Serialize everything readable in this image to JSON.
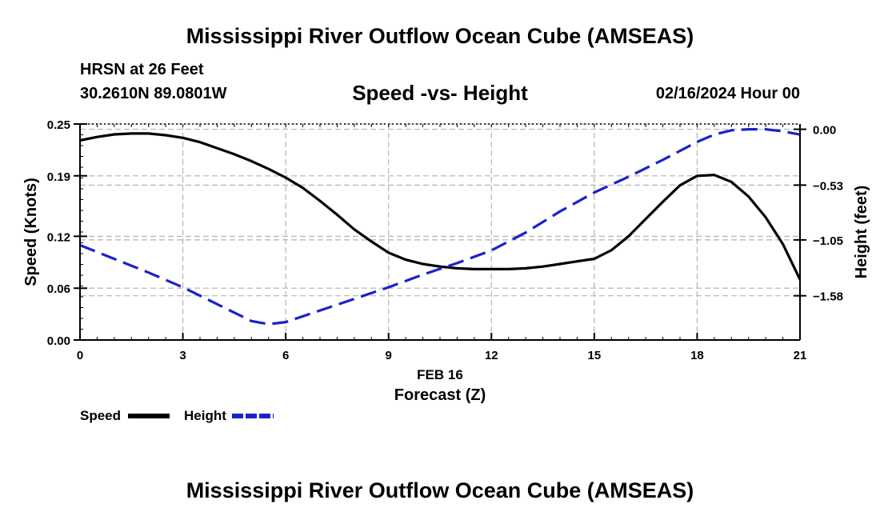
{
  "header": {
    "title": "Mississippi River Outflow Ocean Cube (AMSEAS)",
    "station": "HRSN at 26 Feet",
    "coords": "30.2610N  89.0801W",
    "subtitle": "Speed -vs- Height",
    "datestamp": "02/16/2024 Hour 00"
  },
  "footer": {
    "title": "Mississippi River Outflow Ocean Cube (AMSEAS)"
  },
  "colors": {
    "speed": "#000000",
    "height": "#1a22c8",
    "grid": "#b4b4b4"
  },
  "chart_data": {
    "type": "line",
    "title": "Speed -vs- Height",
    "xlabel": "Forecast (Z)",
    "xlabel_date": "FEB 16",
    "ylabel_left": "Speed (Knots)",
    "ylabel_right": "Height (feet)",
    "xlim": [
      0,
      21
    ],
    "x_ticks": [
      0,
      3,
      6,
      9,
      12,
      15,
      18,
      21
    ],
    "x_tick_labels": [
      "0",
      "3",
      "6",
      "9",
      "12",
      "15",
      "18",
      "21"
    ],
    "y_left_lim": [
      0,
      0.25
    ],
    "y_left_ticks": [
      0.0,
      0.06,
      0.12,
      0.19,
      0.25
    ],
    "y_left_tick_labels": [
      "0.00",
      "0.06",
      "0.12",
      "0.19",
      "0.25"
    ],
    "y_right_lim": [
      -2.0,
      0.05
    ],
    "y_right_ticks": [
      0.0,
      -0.53,
      -1.05,
      -1.58
    ],
    "y_right_tick_labels": [
      "0.00",
      "−0.53",
      "−1.05",
      "−1.58"
    ],
    "grid": true,
    "legend": [
      {
        "label": "Speed",
        "style": "solid"
      },
      {
        "label": "Height",
        "style": "dashed"
      }
    ],
    "series": [
      {
        "name": "Speed",
        "axis": "left",
        "style": "solid",
        "x": [
          0,
          0.5,
          1,
          1.5,
          2,
          2.5,
          3,
          3.5,
          4,
          4.5,
          5,
          5.5,
          6,
          6.5,
          7,
          7.5,
          8,
          8.5,
          9,
          9.5,
          10,
          10.5,
          11,
          11.5,
          12,
          12.5,
          13,
          13.5,
          14,
          14.5,
          15,
          15.5,
          16,
          16.5,
          17,
          17.5,
          18,
          18.5,
          19,
          19.5,
          20,
          20.5,
          21
        ],
        "values": [
          0.231,
          0.235,
          0.238,
          0.239,
          0.239,
          0.237,
          0.234,
          0.229,
          0.222,
          0.215,
          0.207,
          0.198,
          0.188,
          0.176,
          0.161,
          0.145,
          0.128,
          0.114,
          0.101,
          0.093,
          0.088,
          0.085,
          0.083,
          0.082,
          0.082,
          0.082,
          0.083,
          0.085,
          0.088,
          0.091,
          0.094,
          0.104,
          0.12,
          0.14,
          0.16,
          0.179,
          0.19,
          0.191,
          0.183,
          0.166,
          0.142,
          0.111,
          0.07
        ]
      },
      {
        "name": "Height",
        "axis": "right",
        "style": "dashed",
        "x": [
          0,
          1,
          2,
          3,
          4,
          5,
          5.5,
          6,
          7,
          8,
          9,
          10,
          11,
          12,
          13,
          14,
          15,
          16,
          17,
          18,
          18.5,
          19,
          19.5,
          20,
          20.5,
          21
        ],
        "values": [
          -1.1,
          -1.23,
          -1.36,
          -1.5,
          -1.66,
          -1.82,
          -1.85,
          -1.83,
          -1.72,
          -1.61,
          -1.5,
          -1.38,
          -1.27,
          -1.15,
          -0.98,
          -0.78,
          -0.6,
          -0.45,
          -0.29,
          -0.12,
          -0.05,
          -0.01,
          0.0,
          0.0,
          -0.02,
          -0.05
        ]
      }
    ]
  }
}
